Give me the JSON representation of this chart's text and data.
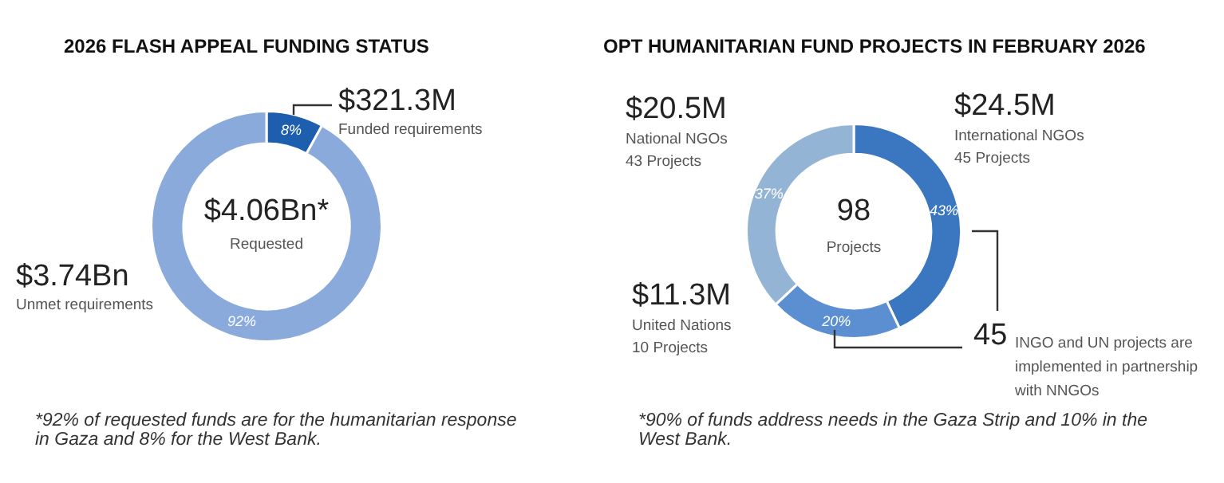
{
  "chart_data": [
    {
      "type": "donut",
      "title": "2026 FLASH APPEAL FUNDING STATUS",
      "categories": [
        "Funded requirements",
        "Unmet requirements"
      ],
      "values": [
        8,
        92
      ],
      "colors": [
        "#1d5fae",
        "#8aaadc"
      ],
      "value_labels": [
        "8%",
        "92%"
      ],
      "annotations": [
        "$4.06Bn*",
        "Requested",
        "$321.3M",
        "$3.74Bn",
        "*92% of requested funds are for the humanitarian response in Gaza and 8% for the West Bank."
      ]
    },
    {
      "type": "donut",
      "title": "OPT HUMANITARIAN FUND PROJECTS IN FEBRUARY 2026",
      "categories": [
        "International NGOs",
        "United Nations",
        "National NGOs"
      ],
      "values": [
        43,
        20,
        37
      ],
      "colors": [
        "#3a77c0",
        "#5b8fd2",
        "#94b4d6"
      ],
      "value_labels": [
        "43%",
        "20%",
        "37%"
      ],
      "annotations": [
        "98",
        "Projects",
        "$24.5M",
        "45 Projects",
        "$11.3M",
        "10 Projects",
        "$20.5M",
        "43 Projects",
        "45",
        "INGO and UN projects are implemented in partnership with NNGOs",
        "*90% of funds address needs in the Gaza Strip and 10% in the West Bank."
      ]
    }
  ]
}
